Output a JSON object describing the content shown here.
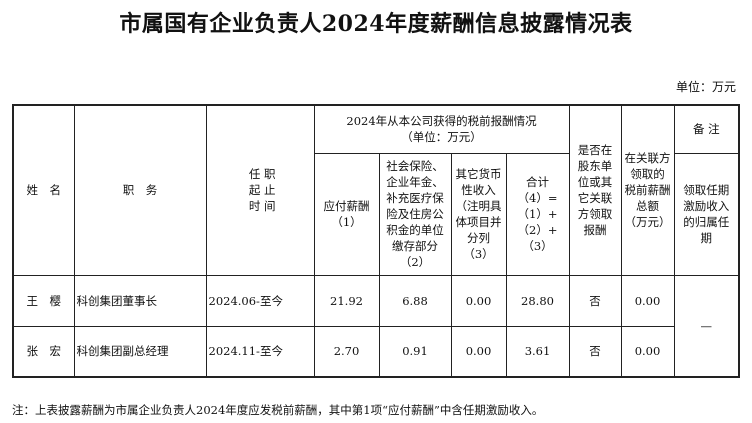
{
  "title": "市属国有企业负责人2024年度薪酬信息披露情况表",
  "unit": "单位：万元",
  "headers": {
    "name": "姓　名",
    "position": "职　务",
    "term": "任 职\n起 止\n时 间",
    "group": "2024年从本公司获得的税前报酬情况\n（单位：万元）",
    "salary": "应付薪酬\n（1）",
    "insurance": "社会保险、\n企业年金、\n补充医疗保\n险及住房公\n积金的单位\n缴存部分\n（2）",
    "other": "其它货币\n性收入\n（注明具\n体项目并\n分列\n（3）",
    "total": "合计\n（4）=\n（1）+\n（2）+\n（3）",
    "shareholder": "是否在\n股东单\n位或其\n它关联\n方领取\n报酬",
    "related": "在关联方\n领取的\n税前薪酬\n总额\n（万元）",
    "remarks": "备 注",
    "incentive": "领取任期\n激励收入\n的归属任\n期"
  },
  "rows": [
    {
      "name": "王　樱",
      "position": "科创集团董事长",
      "term": "2024.06-至今",
      "salary": "21.92",
      "insurance": "6.88",
      "other": "0.00",
      "total": "28.80",
      "shareholder": "否",
      "related": "0.00"
    },
    {
      "name": "张　宏",
      "position": "科创集团副总经理",
      "term": "2024.11-至今",
      "salary": "2.70",
      "insurance": "0.91",
      "other": "0.00",
      "total": "3.61",
      "shareholder": "否",
      "related": "0.00"
    }
  ],
  "incentive_value": "—",
  "note": "注：上表披露薪酬为市属企业负责人2024年度应发税前薪酬，其中第1项“应付薪酬”中含任期激励收入。"
}
